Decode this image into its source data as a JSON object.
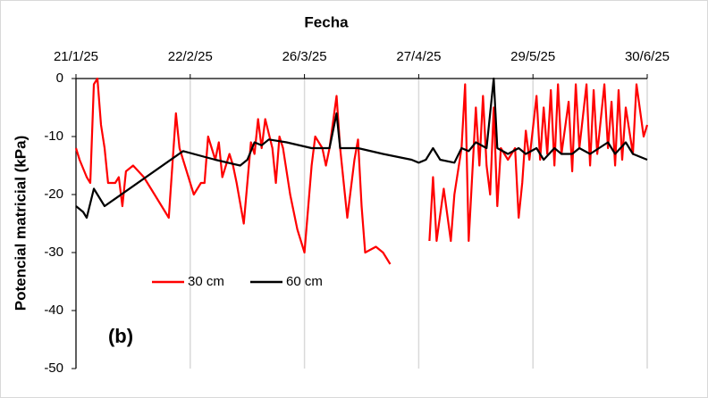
{
  "chart_data": {
    "type": "line",
    "x_label": "Fecha",
    "y_label": "Potencial matricial (kPa)",
    "annotation": "(b)",
    "xlim": [
      "2025-01-21",
      "2025-06-30"
    ],
    "xticks": [
      {
        "value": "2025-01-21",
        "label": "21/1/25"
      },
      {
        "value": "2025-02-22",
        "label": "22/2/25"
      },
      {
        "value": "2025-03-26",
        "label": "26/3/25"
      },
      {
        "value": "2025-04-27",
        "label": "27/4/25"
      },
      {
        "value": "2025-05-29",
        "label": "29/5/25"
      },
      {
        "value": "2025-06-30",
        "label": "30/6/25"
      }
    ],
    "ylim": [
      -50,
      0
    ],
    "yticks": [
      0,
      -10,
      -20,
      -30,
      -40,
      -50
    ],
    "grid": "x",
    "legend": "left",
    "series": [
      {
        "name": "30 cm",
        "color": "#ff0000",
        "x": [
          "2025-01-21",
          "2025-01-22",
          "2025-01-24",
          "2025-01-25",
          "2025-01-26",
          "2025-01-27",
          "2025-01-28",
          "2025-01-29",
          "2025-01-30",
          "2025-02-01",
          "2025-02-02",
          "2025-02-03",
          "2025-02-04",
          "2025-02-06",
          "2025-02-09",
          "2025-02-12",
          "2025-02-16",
          "2025-02-18",
          "2025-02-19",
          "2025-02-21",
          "2025-02-23",
          "2025-02-25",
          "2025-02-26",
          "2025-02-27",
          "2025-03-01",
          "2025-03-02",
          "2025-03-03",
          "2025-03-05",
          "2025-03-06",
          "2025-03-07",
          "2025-03-09",
          "2025-03-11",
          "2025-03-12",
          "2025-03-13",
          "2025-03-14",
          "2025-03-15",
          "2025-03-17",
          "2025-03-18",
          "2025-03-19",
          "2025-03-20",
          "2025-03-22",
          "2025-03-24",
          "2025-03-25",
          "2025-03-26",
          "2025-03-28",
          "2025-03-29",
          "2025-03-31",
          "2025-04-01",
          "2025-04-02",
          "2025-04-04",
          "2025-04-05",
          "2025-04-06",
          "2025-04-07",
          "2025-04-09",
          "2025-04-10",
          "2025-04-11",
          "2025-04-12",
          "2025-04-15",
          "2025-04-17",
          "2025-04-19",
          "2025-04-24",
          "2025-04-30",
          "2025-05-01",
          "2025-05-02",
          "2025-05-04",
          "2025-05-06",
          "2025-05-07",
          "2025-05-09",
          "2025-05-10",
          "2025-05-11",
          "2025-05-13",
          "2025-05-14",
          "2025-05-15",
          "2025-05-16",
          "2025-05-17",
          "2025-05-18",
          "2025-05-19",
          "2025-05-20",
          "2025-05-22",
          "2025-05-24",
          "2025-05-25",
          "2025-05-26",
          "2025-05-27",
          "2025-05-28",
          "2025-05-30",
          "2025-05-31",
          "2025-06-01",
          "2025-06-02",
          "2025-06-03",
          "2025-06-04",
          "2025-06-05",
          "2025-06-06",
          "2025-06-08",
          "2025-06-09",
          "2025-06-10",
          "2025-06-11",
          "2025-06-13",
          "2025-06-14",
          "2025-06-15",
          "2025-06-16",
          "2025-06-18",
          "2025-06-19",
          "2025-06-20",
          "2025-06-21",
          "2025-06-22",
          "2025-06-23",
          "2025-06-24",
          "2025-06-26",
          "2025-06-27",
          "2025-06-29",
          "2025-06-30"
        ],
        "values": [
          -12,
          -14,
          -17,
          -18,
          -1,
          0,
          -8,
          -12,
          -18,
          -18,
          -17,
          -22,
          -16,
          -15,
          -17,
          -20,
          -24,
          -6,
          -12,
          -16,
          -20,
          -18,
          -18,
          -10,
          -14,
          -11,
          -17,
          -13,
          -15,
          -18,
          -25,
          -11,
          -13,
          -7,
          -12,
          -7,
          -12,
          -18,
          -10,
          -12,
          -20,
          -26,
          -28,
          -30,
          -15,
          -10,
          -12,
          -15,
          -12,
          -3,
          -12,
          -18,
          -24,
          -14,
          -10.5,
          -22,
          -30,
          -29,
          -30,
          -32,
          null,
          -28,
          -17,
          -28,
          -19,
          -28,
          -20,
          -12,
          -1,
          -28,
          -5,
          -15,
          -3,
          -15,
          -20,
          -5,
          -22,
          -12,
          -14,
          -12,
          -24,
          -18,
          -9,
          -14,
          -3,
          -14,
          -5,
          -13,
          -2,
          -15,
          -1,
          -13,
          -4,
          -16,
          -1,
          -12,
          -1,
          -15,
          -2,
          -13,
          -1,
          -12,
          -4,
          -15,
          -2,
          -14,
          -5,
          -13,
          -1,
          -10,
          -8
        ]
      },
      {
        "name": "60 cm",
        "color": "#000000",
        "x": [
          "2025-01-21",
          "2025-01-23",
          "2025-01-24",
          "2025-01-26",
          "2025-01-27",
          "2025-01-29",
          "2025-02-20",
          "2025-03-01",
          "2025-03-08",
          "2025-03-10",
          "2025-03-12",
          "2025-03-14",
          "2025-03-16",
          "2025-03-21",
          "2025-03-28",
          "2025-04-02",
          "2025-04-04",
          "2025-04-05",
          "2025-04-10",
          "2025-04-17",
          "2025-04-25",
          "2025-04-27",
          "2025-04-29",
          "2025-05-01",
          "2025-05-03",
          "2025-05-07",
          "2025-05-09",
          "2025-05-11",
          "2025-05-13",
          "2025-05-16",
          "2025-05-18",
          "2025-05-19",
          "2025-05-22",
          "2025-05-25",
          "2025-05-27",
          "2025-05-30",
          "2025-06-01",
          "2025-06-04",
          "2025-06-06",
          "2025-06-09",
          "2025-06-11",
          "2025-06-14",
          "2025-06-19",
          "2025-06-21",
          "2025-06-24",
          "2025-06-26",
          "2025-06-30"
        ],
        "values": [
          -22,
          -23,
          -24,
          -19,
          -20,
          -22,
          -12.5,
          -14,
          -15,
          -14,
          -11,
          -11.5,
          -10.5,
          -11,
          -12,
          -12,
          -6,
          -12,
          -12,
          -13,
          -14,
          -14.5,
          -14,
          -12,
          -14,
          -14.5,
          -12,
          -12.5,
          -11,
          -12,
          0,
          -12,
          -13,
          -12,
          -13,
          -12,
          -14,
          -12,
          -13,
          -13,
          -12,
          -13,
          -11,
          -13,
          -11,
          -13,
          -14
        ]
      }
    ]
  }
}
